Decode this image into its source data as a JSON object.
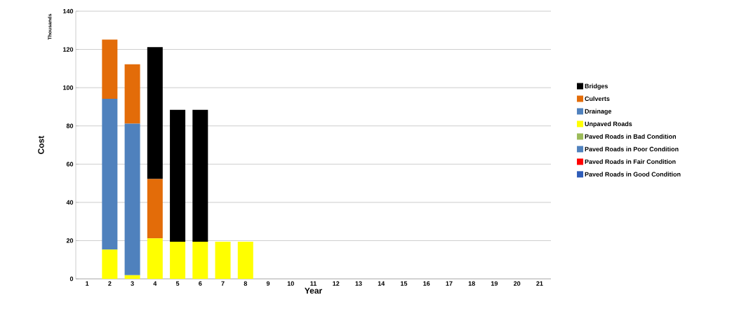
{
  "chart_data": {
    "type": "bar",
    "stacked": true,
    "xlabel": "Year",
    "ylabel": "Cost",
    "annotations": [
      "Thousands"
    ],
    "categories": [
      "1",
      "2",
      "3",
      "4",
      "5",
      "6",
      "7",
      "8",
      "9",
      "10",
      "11",
      "12",
      "13",
      "14",
      "15",
      "16",
      "17",
      "18",
      "19",
      "20",
      "21"
    ],
    "ylim": [
      0,
      140
    ],
    "yticks": [
      0,
      20,
      40,
      60,
      80,
      100,
      120,
      140
    ],
    "grid": "y",
    "legend": "right",
    "series": [
      {
        "name": "Paved Roads in Good Condition",
        "color": "#2e5cb8",
        "values": [
          0,
          0,
          0,
          0,
          0,
          0,
          0,
          0,
          0,
          0,
          0,
          0,
          0,
          0,
          0,
          0,
          0,
          0,
          0,
          0,
          0
        ]
      },
      {
        "name": "Paved Roads in Fair Condition",
        "color": "#ff0000",
        "values": [
          0,
          0,
          0,
          0,
          0,
          0,
          0,
          0,
          0,
          0,
          0,
          0,
          0,
          0,
          0,
          0,
          0,
          0,
          0,
          0,
          0
        ]
      },
      {
        "name": "Paved Roads in Poor Condition",
        "color": "#4f81bd",
        "values": [
          0,
          0,
          0,
          0,
          0,
          0,
          0,
          0,
          0,
          0,
          0,
          0,
          0,
          0,
          0,
          0,
          0,
          0,
          0,
          0,
          0
        ]
      },
      {
        "name": "Paved Roads in Bad Condition",
        "color": "#9bbb59",
        "values": [
          0,
          0,
          0,
          0,
          0,
          0,
          0,
          0,
          0,
          0,
          0,
          0,
          0,
          0,
          0,
          0,
          0,
          0,
          0,
          0,
          0
        ]
      },
      {
        "name": "Unpaved Roads",
        "color": "#ffff00",
        "values": [
          0,
          15.3,
          1.9,
          21.2,
          19.4,
          19.4,
          19.4,
          19.4,
          0,
          0,
          0,
          0,
          0,
          0,
          0,
          0,
          0,
          0,
          0,
          0,
          0
        ]
      },
      {
        "name": "Drainage",
        "color": "#4f81bd",
        "values": [
          0,
          78.9,
          79.3,
          0,
          0,
          0,
          0,
          0,
          0,
          0,
          0,
          0,
          0,
          0,
          0,
          0,
          0,
          0,
          0,
          0,
          0
        ]
      },
      {
        "name": "Culverts",
        "color": "#e36c09",
        "values": [
          0,
          31.0,
          31.0,
          31.0,
          0,
          0,
          0,
          0,
          0,
          0,
          0,
          0,
          0,
          0,
          0,
          0,
          0,
          0,
          0,
          0,
          0
        ]
      },
      {
        "name": "Bridges",
        "color": "#000000",
        "values": [
          0,
          0,
          0,
          69.0,
          69.0,
          69.0,
          0,
          0,
          0,
          0,
          0,
          0,
          0,
          0,
          0,
          0,
          0,
          0,
          0,
          0,
          0
        ]
      }
    ]
  }
}
